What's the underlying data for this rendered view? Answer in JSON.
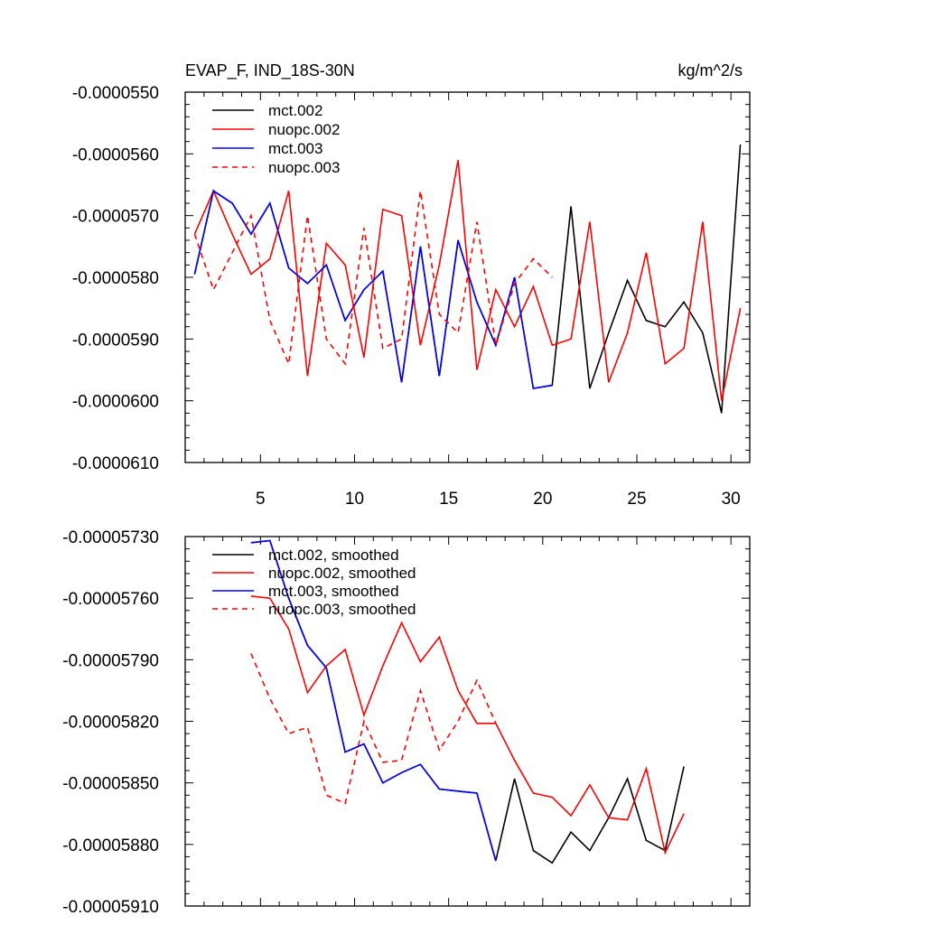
{
  "chart_data": [
    {
      "type": "line",
      "title": "EVAP_F, IND_18S-30N",
      "units": "kg/m^2/s",
      "xlim": [
        1,
        31
      ],
      "ylim": [
        -6.1e-05,
        -5.5e-05
      ],
      "x_ticks": [
        5,
        10,
        15,
        20,
        25,
        30
      ],
      "x_tick_labels": [
        "5",
        "10",
        "15",
        "20",
        "25",
        "30"
      ],
      "y_ticks": [
        -5.5e-05,
        -5.6e-05,
        -5.7e-05,
        -5.8e-05,
        -5.9e-05,
        -6e-05,
        -6.1e-05
      ],
      "y_tick_labels": [
        "-0.0000550",
        "-0.0000560",
        "-0.0000570",
        "-0.0000580",
        "-0.0000590",
        "-0.0000600",
        "-0.0000610"
      ],
      "legend_position": "top-left",
      "series": [
        {
          "name": "mct.002",
          "color": "#000000",
          "dash": "solid",
          "x": [
            1.5,
            2.5,
            3.5,
            4.5,
            5.5,
            6.5,
            7.5,
            8.5,
            9.5,
            10.5,
            11.5,
            12.5,
            13.5,
            14.5,
            15.5,
            16.5,
            17.5,
            18.5,
            19.5,
            20.5,
            21.5,
            22.5,
            23.5,
            24.5,
            25.5,
            26.5,
            27.5,
            28.5,
            29.5,
            30.5
          ],
          "values": [
            -5.795e-05,
            -5.66e-05,
            -5.68e-05,
            -5.73e-05,
            -5.68e-05,
            -5.785e-05,
            -5.81e-05,
            -5.78e-05,
            -5.87e-05,
            -5.82e-05,
            -5.79e-05,
            -5.97e-05,
            -5.75e-05,
            -5.96e-05,
            -5.74e-05,
            -5.84e-05,
            -5.91e-05,
            -5.8e-05,
            -5.98e-05,
            -5.975e-05,
            -5.685e-05,
            -5.98e-05,
            -5.89e-05,
            -5.805e-05,
            -5.87e-05,
            -5.88e-05,
            -5.84e-05,
            -5.89e-05,
            -6.02e-05,
            -5.585e-05
          ]
        },
        {
          "name": "nuopc.002",
          "color": "#ff0000",
          "dash": "solid",
          "x": [
            1.5,
            2.5,
            3.5,
            4.5,
            5.5,
            6.5,
            7.5,
            8.5,
            9.5,
            10.5,
            11.5,
            12.5,
            13.5,
            14.5,
            15.5,
            16.5,
            17.5,
            18.5,
            19.5,
            20.5,
            21.5,
            22.5,
            23.5,
            24.5,
            25.5,
            26.5,
            27.5,
            28.5,
            29.5,
            30.5
          ],
          "values": [
            -5.73e-05,
            -5.66e-05,
            -5.73e-05,
            -5.795e-05,
            -5.77e-05,
            -5.66e-05,
            -5.96e-05,
            -5.745e-05,
            -5.78e-05,
            -5.93e-05,
            -5.69e-05,
            -5.7e-05,
            -5.91e-05,
            -5.78e-05,
            -5.61e-05,
            -5.95e-05,
            -5.82e-05,
            -5.88e-05,
            -5.815e-05,
            -5.91e-05,
            -5.9e-05,
            -5.71e-05,
            -5.97e-05,
            -5.89e-05,
            -5.76e-05,
            -5.94e-05,
            -5.915e-05,
            -5.71e-05,
            -6e-05,
            -5.85e-05
          ]
        },
        {
          "name": "mct.003",
          "color": "#0000ff",
          "dash": "solid",
          "x": [
            1.5,
            2.5,
            3.5,
            4.5,
            5.5,
            6.5,
            7.5,
            8.5,
            9.5,
            10.5,
            11.5,
            12.5,
            13.5,
            14.5,
            15.5,
            16.5,
            17.5,
            18.5,
            19.5,
            20.5
          ],
          "values": [
            -5.795e-05,
            -5.66e-05,
            -5.68e-05,
            -5.73e-05,
            -5.68e-05,
            -5.785e-05,
            -5.81e-05,
            -5.78e-05,
            -5.87e-05,
            -5.82e-05,
            -5.79e-05,
            -5.97e-05,
            -5.75e-05,
            -5.96e-05,
            -5.74e-05,
            -5.84e-05,
            -5.91e-05,
            -5.8e-05,
            -5.98e-05,
            -5.975e-05
          ]
        },
        {
          "name": "nuopc.003",
          "color": "#ff0000",
          "dash": "dashed",
          "x": [
            1.5,
            2.5,
            3.5,
            4.5,
            5.5,
            6.5,
            7.5,
            8.5,
            9.5,
            10.5,
            11.5,
            12.5,
            13.5,
            14.5,
            15.5,
            16.5,
            17.5,
            18.5,
            19.5,
            20.5
          ],
          "values": [
            -5.73e-05,
            -5.82e-05,
            -5.76e-05,
            -5.7e-05,
            -5.87e-05,
            -5.94e-05,
            -5.7e-05,
            -5.9e-05,
            -5.94e-05,
            -5.72e-05,
            -5.915e-05,
            -5.9e-05,
            -5.66e-05,
            -5.86e-05,
            -5.89e-05,
            -5.71e-05,
            -5.91e-05,
            -5.81e-05,
            -5.77e-05,
            -5.8e-05
          ]
        }
      ]
    },
    {
      "type": "line",
      "title": "",
      "xlim": [
        1,
        31
      ],
      "ylim": [
        -5.91e-05,
        -5.73e-05
      ],
      "x_ticks": [
        5,
        10,
        15,
        20,
        25,
        30
      ],
      "x_tick_labels": [],
      "y_ticks": [
        -5.73e-05,
        -5.76e-05,
        -5.79e-05,
        -5.82e-05,
        -5.85e-05,
        -5.88e-05,
        -5.91e-05
      ],
      "y_tick_labels": [
        "-0.00005730",
        "-0.00005760",
        "-0.00005790",
        "-0.00005820",
        "-0.00005850",
        "-0.00005880",
        "-0.00005910"
      ],
      "legend_position": "top-left",
      "series": [
        {
          "name": "mct.002, smoothed",
          "color": "#000000",
          "dash": "solid",
          "x": [
            4.5,
            5.5,
            6.5,
            7.5,
            8.5,
            9.5,
            10.5,
            11.5,
            12.5,
            13.5,
            14.5,
            15.5,
            16.5,
            17.5,
            18.5,
            19.5,
            20.5,
            21.5,
            22.5,
            23.5,
            24.5,
            25.5,
            26.5,
            27.5
          ],
          "values": [
            -5.733e-05,
            -5.732e-05,
            -5.76e-05,
            -5.783e-05,
            -5.794e-05,
            -5.835e-05,
            -5.831e-05,
            -5.85e-05,
            -5.845e-05,
            -5.841e-05,
            -5.853e-05,
            -5.854e-05,
            -5.855e-05,
            -5.888e-05,
            -5.848e-05,
            -5.883e-05,
            -5.889e-05,
            -5.874e-05,
            -5.883e-05,
            -5.867e-05,
            -5.848e-05,
            -5.878e-05,
            -5.883e-05,
            -5.842e-05
          ]
        },
        {
          "name": "nuopc.002, smoothed",
          "color": "#ff0000",
          "dash": "solid",
          "x": [
            4.5,
            5.5,
            6.5,
            7.5,
            8.5,
            9.5,
            10.5,
            11.5,
            12.5,
            13.5,
            14.5,
            15.5,
            16.5,
            17.5,
            18.5,
            19.5,
            20.5,
            21.5,
            22.5,
            23.5,
            24.5,
            25.5,
            26.5,
            27.5
          ],
          "values": [
            -5.759e-05,
            -5.76e-05,
            -5.775e-05,
            -5.806e-05,
            -5.793e-05,
            -5.785e-05,
            -5.817e-05,
            -5.793e-05,
            -5.772e-05,
            -5.791e-05,
            -5.779e-05,
            -5.805e-05,
            -5.821e-05,
            -5.821e-05,
            -5.839e-05,
            -5.855e-05,
            -5.857e-05,
            -5.866e-05,
            -5.851e-05,
            -5.867e-05,
            -5.868e-05,
            -5.843e-05,
            -5.884e-05,
            -5.865e-05
          ]
        },
        {
          "name": "mct.003, smoothed",
          "color": "#0000ff",
          "dash": "solid",
          "x": [
            4.5,
            5.5,
            6.5,
            7.5,
            8.5,
            9.5,
            10.5,
            11.5,
            12.5,
            13.5,
            14.5,
            15.5,
            16.5,
            17.5
          ],
          "values": [
            -5.733e-05,
            -5.732e-05,
            -5.76e-05,
            -5.783e-05,
            -5.794e-05,
            -5.835e-05,
            -5.831e-05,
            -5.85e-05,
            -5.845e-05,
            -5.841e-05,
            -5.853e-05,
            -5.854e-05,
            -5.855e-05,
            -5.888e-05
          ]
        },
        {
          "name": "nuopc.003, smoothed",
          "color": "#ff0000",
          "dash": "dashed",
          "x": [
            4.5,
            5.5,
            6.5,
            7.5,
            8.5,
            9.5,
            10.5,
            11.5,
            12.5,
            13.5,
            14.5,
            15.5,
            16.5,
            17.5
          ],
          "values": [
            -5.787e-05,
            -5.809e-05,
            -5.826e-05,
            -5.823e-05,
            -5.856e-05,
            -5.86e-05,
            -5.82e-05,
            -5.84e-05,
            -5.839e-05,
            -5.805e-05,
            -5.834e-05,
            -5.82e-05,
            -5.8e-05,
            -5.821e-05
          ]
        }
      ]
    }
  ]
}
